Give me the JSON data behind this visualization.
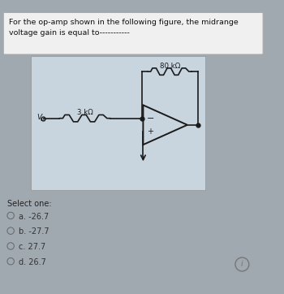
{
  "title_text_line1": "For the op-amp shown in the following figure, the midrange",
  "title_text_line2": "voltage gain is equal to-----------",
  "bg_color": "#a0a8b0",
  "top_box_color": "#dce4ec",
  "circuit_box_color": "#c8d4de",
  "select_one_text": "Select one:",
  "options": [
    "a. -26.7",
    "b. -27.7",
    "c. 27.7",
    "d. 26.7"
  ],
  "r1_label": "3 kΩ",
  "r2_label": "80 kΩ",
  "vin_label": "V",
  "vin_sub": "in"
}
